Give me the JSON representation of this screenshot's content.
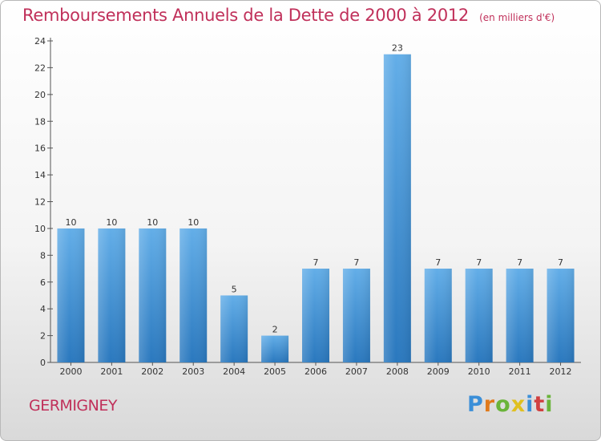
{
  "title": "Remboursements Annuels de la Dette de 2000 à 2012",
  "unit_note": "(en milliers d'€)",
  "town": "GERMIGNEY",
  "logo": {
    "letters": [
      "P",
      "r",
      "o",
      "x",
      "i",
      "t",
      "i"
    ],
    "colors": [
      "#3b8fd8",
      "#e07a1c",
      "#6ab43a",
      "#e0c020",
      "#3b8fd8",
      "#d04040",
      "#6ab43a"
    ]
  },
  "colors": {
    "bar": "#3d8fd6",
    "bar_light": "#63aee8",
    "bar_dark": "#2a78be",
    "title": "#c0305a",
    "axis": "#555555",
    "grid": "#d8d8d8"
  },
  "chart_data": {
    "type": "bar",
    "title": "Remboursements Annuels de la Dette de 2000 à 2012",
    "xlabel": "",
    "ylabel": "",
    "categories": [
      "2000",
      "2001",
      "2002",
      "2003",
      "2004",
      "2005",
      "2006",
      "2007",
      "2008",
      "2009",
      "2010",
      "2011",
      "2012"
    ],
    "values": [
      10,
      10,
      10,
      10,
      5,
      2,
      7,
      7,
      23,
      7,
      7,
      7,
      7
    ],
    "ylim": [
      0,
      24
    ],
    "yticks": [
      0,
      2,
      4,
      6,
      8,
      10,
      12,
      14,
      16,
      18,
      20,
      22,
      24
    ],
    "grid": false,
    "data_labels": true
  }
}
